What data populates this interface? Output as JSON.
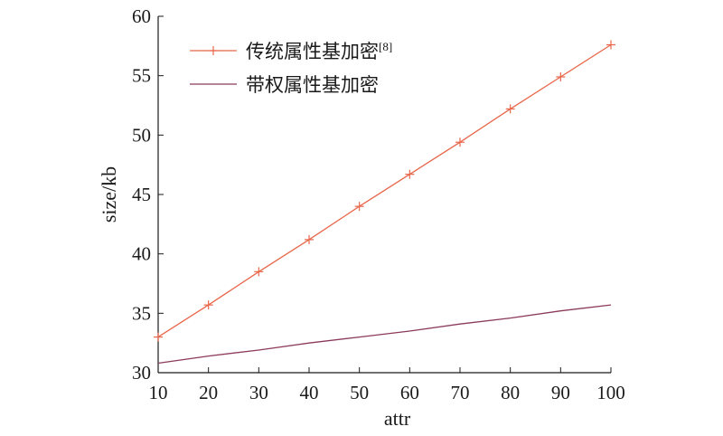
{
  "chart_data": {
    "type": "line",
    "xlabel": "attr",
    "ylabel": "size/kb",
    "xlim": [
      10,
      100
    ],
    "ylim": [
      30,
      60
    ],
    "x_ticks": [
      10,
      20,
      30,
      40,
      50,
      60,
      70,
      80,
      90,
      100
    ],
    "y_ticks": [
      30,
      35,
      40,
      45,
      50,
      55,
      60
    ],
    "grid": false,
    "legend_position": "top-left",
    "x": [
      10,
      20,
      30,
      40,
      50,
      60,
      70,
      80,
      90,
      100
    ],
    "series": [
      {
        "name": "传统属性基加密",
        "name_superscript": "[8]",
        "marker": "plus",
        "color": "#e8664a",
        "values": [
          33.0,
          35.7,
          38.5,
          41.2,
          44.0,
          46.7,
          49.4,
          52.2,
          54.9,
          57.6
        ]
      },
      {
        "name": "带权属性基加密",
        "marker": "none",
        "color": "#8b3a5a",
        "values": [
          30.8,
          31.4,
          31.9,
          32.5,
          33.0,
          33.5,
          34.1,
          34.6,
          35.2,
          35.7
        ]
      }
    ]
  },
  "colors": {
    "axis": "#1a1a1a"
  }
}
